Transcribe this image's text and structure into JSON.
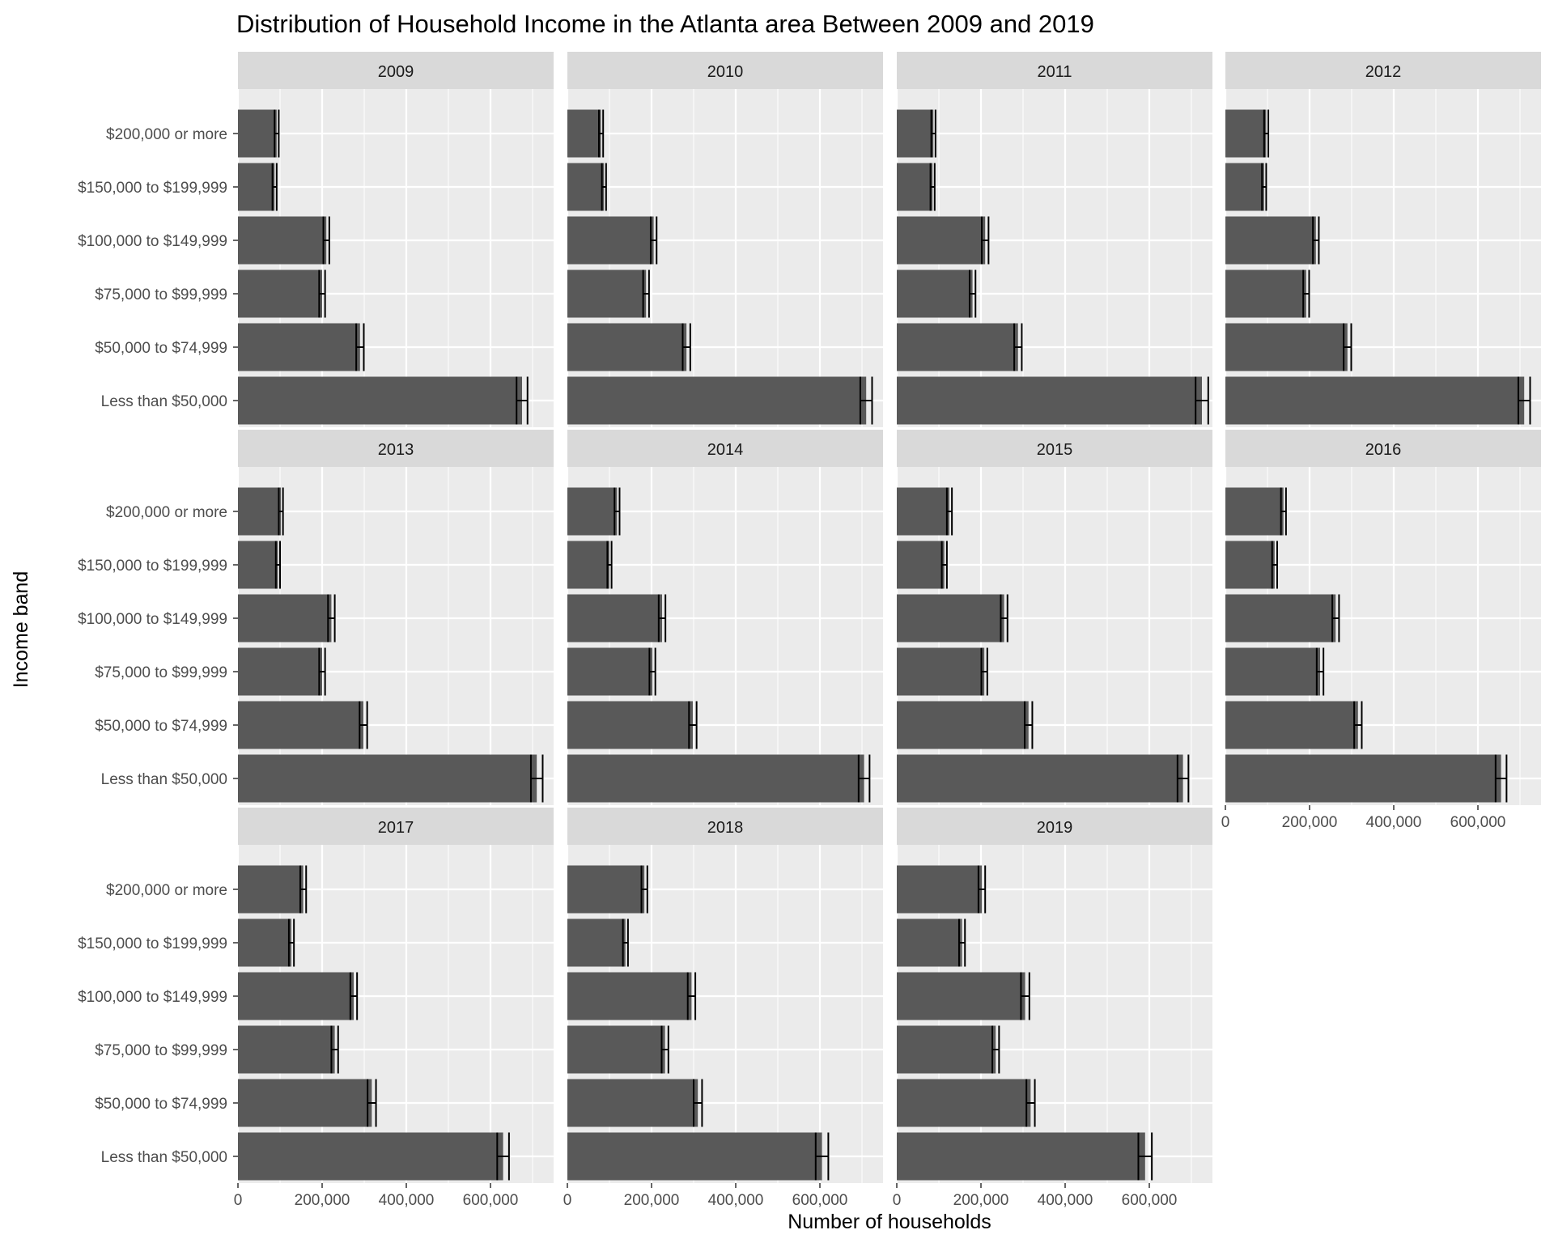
{
  "chart_data": {
    "type": "bar",
    "title": "Distribution of Household Income in the Atlanta area Between 2009 and 2019",
    "xlabel": "Number of households",
    "ylabel": "Income band",
    "xlim": [
      0,
      750000
    ],
    "x_ticks": [
      0,
      200000,
      400000,
      600000
    ],
    "x_tick_labels": [
      "0",
      "200,000",
      "400,000",
      "600,000"
    ],
    "grid": true,
    "legend": "none",
    "bar_color": "#595959",
    "panel_background": "#ebebeb",
    "strip_background": "#d9d9d9",
    "error_bar_color": "#000000",
    "categories": [
      "Less than $50,000",
      "$50,000 to $74,999",
      "$75,000 to $99,999",
      "$100,000 to $149,999",
      "$150,000 to $199,999",
      "$200,000 or more"
    ],
    "facets": [
      {
        "label": "2009",
        "values": [
          675000,
          290000,
          200000,
          210000,
          87000,
          92000
        ],
        "errors": [
          13000,
          9000,
          7000,
          7000,
          5000,
          5000
        ]
      },
      {
        "label": "2010",
        "values": [
          710000,
          283000,
          187000,
          205000,
          87000,
          80000
        ],
        "errors": [
          14000,
          9000,
          7000,
          7000,
          5000,
          5000
        ]
      },
      {
        "label": "2011",
        "values": [
          725000,
          288000,
          180000,
          210000,
          85000,
          87000
        ],
        "errors": [
          15000,
          9000,
          7000,
          8000,
          5000,
          5000
        ]
      },
      {
        "label": "2012",
        "values": [
          710000,
          290000,
          192000,
          215000,
          92000,
          97000
        ],
        "errors": [
          14000,
          9000,
          7000,
          7000,
          5000,
          5000
        ]
      },
      {
        "label": "2013",
        "values": [
          710000,
          298000,
          200000,
          222000,
          95000,
          102000
        ],
        "errors": [
          14000,
          9000,
          7000,
          8000,
          5000,
          5000
        ]
      },
      {
        "label": "2014",
        "values": [
          705000,
          298000,
          202000,
          225000,
          100000,
          118000
        ],
        "errors": [
          13000,
          9000,
          7000,
          8000,
          5000,
          6000
        ]
      },
      {
        "label": "2015",
        "values": [
          680000,
          313000,
          208000,
          255000,
          113000,
          125000
        ],
        "errors": [
          13000,
          9000,
          7000,
          8000,
          6000,
          6000
        ]
      },
      {
        "label": "2016",
        "values": [
          655000,
          315000,
          225000,
          262000,
          117000,
          138000
        ],
        "errors": [
          13000,
          9000,
          8000,
          8000,
          6000,
          6000
        ]
      },
      {
        "label": "2017",
        "values": [
          630000,
          318000,
          230000,
          275000,
          127000,
          155000
        ],
        "errors": [
          14000,
          10000,
          8000,
          8000,
          6000,
          7000
        ]
      },
      {
        "label": "2018",
        "values": [
          605000,
          310000,
          232000,
          295000,
          138000,
          183000
        ],
        "errors": [
          15000,
          10000,
          8000,
          9000,
          6000,
          7000
        ]
      },
      {
        "label": "2019",
        "values": [
          590000,
          318000,
          235000,
          305000,
          155000,
          202000
        ],
        "errors": [
          16000,
          10000,
          8000,
          10000,
          7000,
          8000
        ]
      }
    ]
  }
}
